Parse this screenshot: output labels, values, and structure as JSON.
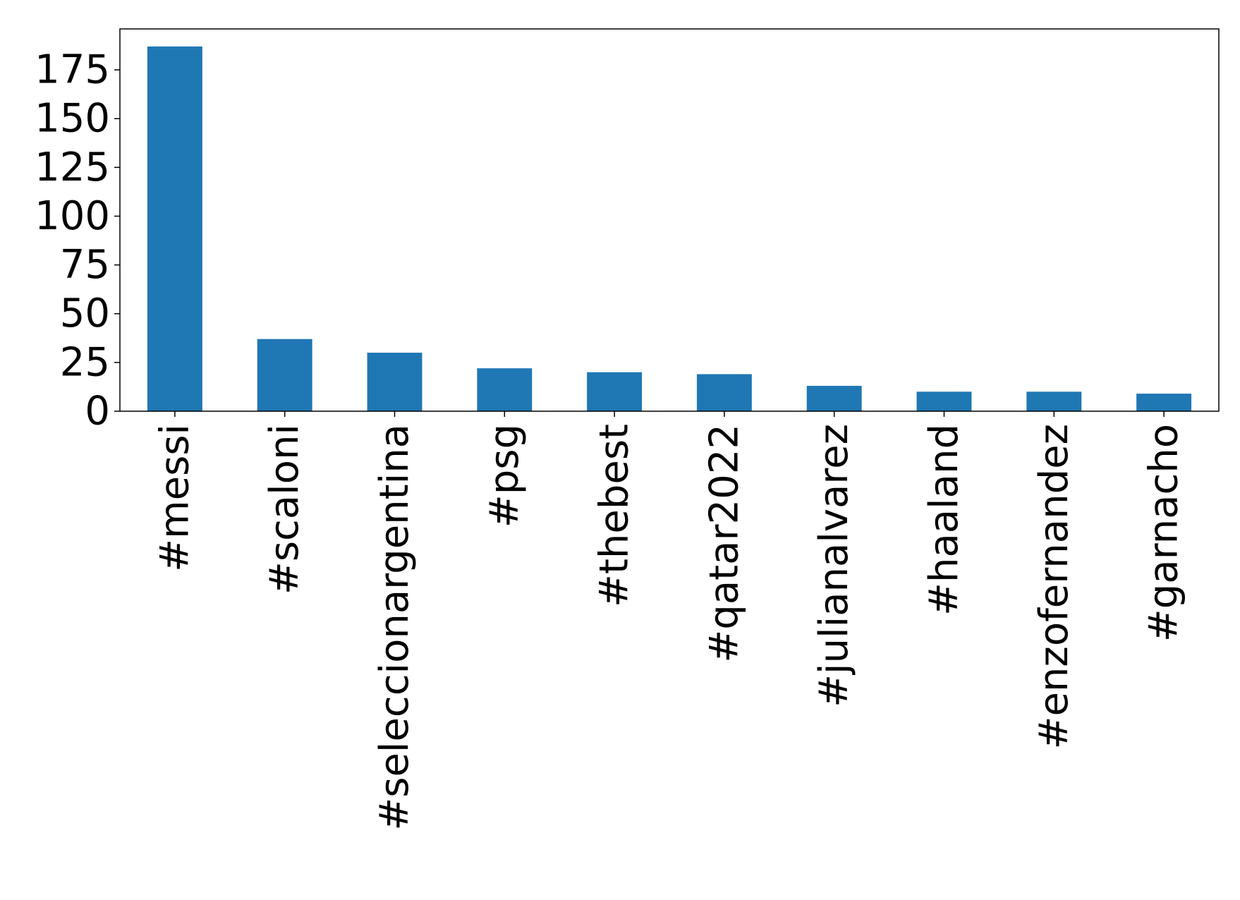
{
  "chart_data": {
    "type": "bar",
    "title": "",
    "xlabel": "",
    "ylabel": "",
    "categories": [
      "#messi",
      "#scaloni",
      "#seleccionargentina",
      "#psg",
      "#thebest",
      "#qatar2022",
      "#julianalvarez",
      "#haaland",
      "#enzofernandez",
      "#garnacho"
    ],
    "values": [
      187,
      37,
      30,
      22,
      20,
      19,
      13,
      10,
      10,
      9
    ],
    "ylim": [
      0,
      196
    ],
    "yticks": [
      0,
      25,
      50,
      75,
      100,
      125,
      150,
      175
    ],
    "grid": false,
    "legend": "none",
    "bar_color": "#1f77b4"
  }
}
